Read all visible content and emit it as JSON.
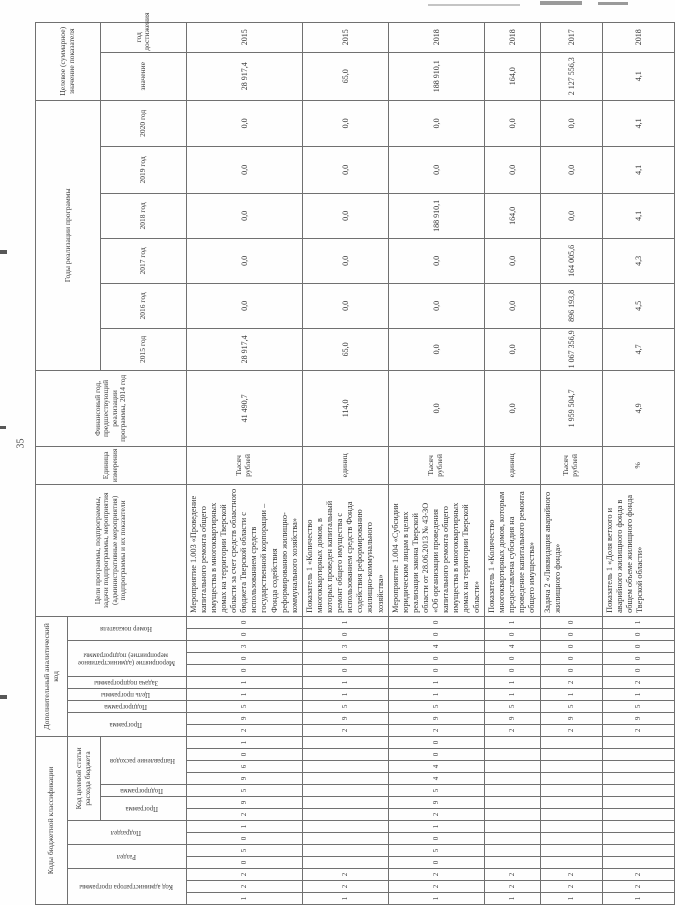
{
  "page": {
    "number": "35"
  },
  "table": {
    "header": {
      "kbk_group": "Коды бюджетной классификации",
      "adm": "Код администратора программы",
      "razdel": "Раздел",
      "podrazdel": "Подраздел",
      "kcsr_group": "Код целевой статьи расхода бюджета",
      "kcsr_programma": "Программа",
      "kcsr_podprogramma": "Подпрограмма",
      "napravlenie": "Направление расходов",
      "dop_group": "Дополнительный аналитический код",
      "dop_programma": "Программа",
      "dop_podprogramma": "Подпрограмма",
      "cel": "Цель программы",
      "zadacha": "Задача подпрограммы",
      "meropriyatie": "Мероприятие (административное мероприятие) подпрограммы",
      "nomer": "Номер показателя",
      "goals": "Цели программы, подпрограммы, задачи подпрограммы, мероприятия (административные мероприятия) подпрограммы и их показатели",
      "unit": "Единица измерения",
      "fin_year": "Финансовый год, предшествующий реализации программы, 2014 год",
      "years_group": "Годы реализации программы",
      "years": [
        "2015 год",
        "2016 год",
        "2017 год",
        "2018 год",
        "2019 год",
        "2020 год"
      ],
      "target_group": "Целевое (суммарное) значение показателя",
      "target_value": "значение",
      "target_year": "год достижения"
    },
    "rows": [
      {
        "goal": "Мероприятие 1.003 «Проведение капитального ремонта общего имущества в многоквартирных домах на территории Тверской области за счет средств областного бюджета Тверской области с использованием средств государственной корпорации – Фонда содействия реформированию жилищно-коммунального хозяйства»",
        "unit": "Тысяч рублей",
        "codes": [
          "1",
          "2",
          "2",
          "0",
          "5",
          "0",
          "1",
          "2",
          "9",
          "5",
          "9",
          "6",
          "0",
          "1",
          "2",
          "9",
          "5",
          "1",
          "1",
          "0",
          "0",
          "3",
          "0",
          "0"
        ],
        "values": [
          "41 490,7",
          "28 917,4",
          "0,0",
          "0,0",
          "0,0",
          "0,0",
          "0,0",
          "28 917,4",
          "2015"
        ]
      },
      {
        "goal": "Показатель 1 «Количество многоквартирных домов, в которых проведен капитальный ремонт общего имущества с использованием средств Фонда содействия реформированию жилищно-коммунального хозяйства»",
        "unit": "единиц",
        "codes": [
          "1",
          "2",
          "2",
          "",
          "",
          "",
          "",
          "",
          "",
          "",
          "",
          "",
          "",
          "",
          "2",
          "9",
          "5",
          "1",
          "1",
          "0",
          "0",
          "3",
          "0",
          "1"
        ],
        "values": [
          "114,0",
          "65,0",
          "0,0",
          "0,0",
          "0,0",
          "0,0",
          "0,0",
          "65,0",
          "2015"
        ]
      },
      {
        "goal": "Мероприятие 1.004 «Субсидии юридическим лицам в целях реализации закона Тверской области от 28.06.2013 № 43-ЗО «Об организации проведения капитального ремонта общего имущества в многоквартирных домах на территории Тверской области»",
        "unit": "Тысяч рублей",
        "codes": [
          "1",
          "2",
          "2",
          "0",
          "5",
          "0",
          "1",
          "2",
          "9",
          "5",
          "4",
          "4",
          "0",
          "0",
          "2",
          "9",
          "5",
          "1",
          "1",
          "0",
          "0",
          "4",
          "0",
          "0"
        ],
        "values": [
          "0,0",
          "0,0",
          "0,0",
          "0,0",
          "188 910,1",
          "0,0",
          "0,0",
          "188 910,1",
          "2018"
        ]
      },
      {
        "goal": "Показатель 1 «Количество многоквартирных домов, которым предоставлена субсидия на проведение капитального ремонта общего имущества»",
        "unit": "единиц",
        "codes": [
          "1",
          "2",
          "2",
          "",
          "",
          "",
          "",
          "",
          "",
          "",
          "",
          "",
          "",
          "",
          "2",
          "9",
          "5",
          "1",
          "1",
          "0",
          "0",
          "4",
          "0",
          "1"
        ],
        "values": [
          "0,0",
          "0,0",
          "0,0",
          "0,0",
          "164,0",
          "0,0",
          "0,0",
          "164,0",
          "2018"
        ]
      },
      {
        "goal": "Задача 2 «Ликвидация аварийного жилищного фонда»",
        "unit": "Тысяч рублей",
        "codes": [
          "1",
          "2",
          "2",
          "",
          "",
          "",
          "",
          "",
          "",
          "",
          "",
          "",
          "",
          "",
          "2",
          "9",
          "5",
          "1",
          "2",
          "0",
          "0",
          "0",
          "0",
          "0"
        ],
        "values": [
          "1 959 504,7",
          "1 067 356,9",
          "896 193,8",
          "164 005,6",
          "0,0",
          "0,0",
          "0,0",
          "2 127 556,3",
          "2017"
        ]
      },
      {
        "goal": "Показатель 1 «Доля ветхого и аварийного жилищного фонда в общем объеме жилищного фонда Тверской области»",
        "unit": "%",
        "codes": [
          "1",
          "2",
          "2",
          "",
          "",
          "",
          "",
          "",
          "",
          "",
          "",
          "",
          "",
          "",
          "2",
          "9",
          "5",
          "1",
          "2",
          "0",
          "0",
          "0",
          "0",
          "1"
        ],
        "values": [
          "4,9",
          "4,7",
          "4,5",
          "4,3",
          "4,1",
          "4,1",
          "4,1",
          "4,1",
          "2018"
        ]
      }
    ]
  }
}
